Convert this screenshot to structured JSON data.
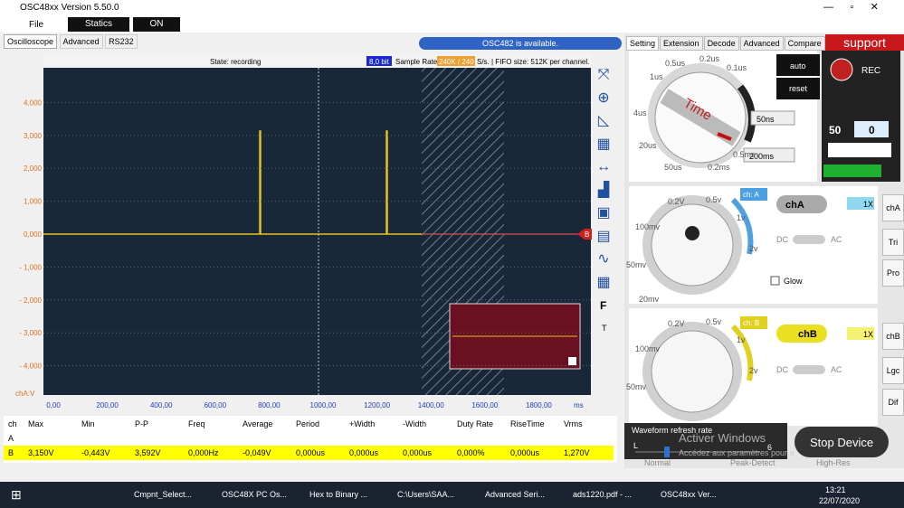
{
  "window": {
    "title": "OSC48xx  Version 5.50.0"
  },
  "menu": [
    "File",
    "Statics",
    "ON"
  ],
  "tabs": [
    "Oscilloscope",
    "Advanced",
    "RS232"
  ],
  "banner": "OSC482  is available.",
  "status": {
    "state": "State: recording",
    "bits": "8,0 bit",
    "rate_label": "Sample Rate",
    "rate": "240K / 240",
    "fifo": "S/s. | FIFO size: 512K per channel."
  },
  "plot": {
    "yticks": [
      "4,000",
      "3,000",
      "2,000",
      "1,000",
      "0,000",
      "- 1,000",
      "- 2,000",
      "- 3,000",
      "- 4,000"
    ],
    "yunit": "chA:V",
    "xticks": [
      "0,00",
      "200,00",
      "400,00",
      "600,00",
      "800,00",
      "1000,00",
      "1200,00",
      "1400,00",
      "1600,00",
      "1800,00"
    ],
    "xunit": "ms",
    "marker": "B"
  },
  "side_letters": [
    "F",
    "T"
  ],
  "measurements": {
    "headers": [
      "ch",
      "Max",
      "Min",
      "P-P",
      "Freq",
      "Average",
      "Period",
      "+Width",
      "-Width",
      "Duty Rate",
      "RiseTime",
      "Vrms"
    ],
    "rows": [
      [
        "A"
      ],
      [
        "B",
        "3,150V",
        "-0,443V",
        "3,592V",
        "0,000Hz",
        "-0,049V",
        "0,000us",
        "0,000us",
        "0,000us",
        "0,000%",
        "0,000us",
        "1,270V"
      ]
    ]
  },
  "right_tabs": [
    "Setting",
    "Extension",
    "Decode",
    "Advanced",
    "Compare"
  ],
  "support": "support",
  "time": {
    "knob": "Time",
    "labels": [
      "1us",
      "0.5us",
      "0.2us",
      "0.1us",
      "4us",
      "20us",
      "50us",
      "0.2ms",
      "0.5ms"
    ],
    "select1": "50ns",
    "select2": "200ms",
    "auto": "auto",
    "reset": "reset"
  },
  "rec": {
    "rec": "REC",
    "count": "50",
    "value": "0"
  },
  "chA": {
    "tag": "ch: A",
    "button": "chA",
    "probe": "1X",
    "dc": "DC",
    "ac": "AC",
    "glow": "Glow",
    "labels": [
      "100mv",
      "0.2V",
      "0.5v",
      "1v",
      "2v",
      "50mv",
      "20mv"
    ]
  },
  "chB": {
    "tag": "ch: B",
    "button": "chB",
    "probe": "1X",
    "dc": "DC",
    "ac": "AC",
    "labels": [
      "100mv",
      "0.2V",
      "0.5v",
      "1v",
      "2v",
      "50mv"
    ]
  },
  "side_tabs": [
    "chA",
    "Tri",
    "Pro",
    "chB",
    "Lgc",
    "Dif"
  ],
  "refresh": {
    "title": "Waveform refresh rate",
    "low": "L",
    "value": "6",
    "stop": "Stop Device",
    "watermark": "Activer Windows",
    "watermark2": "Accédez aux paramètres pour a"
  },
  "modes": [
    "Normal",
    "Peak-Detect",
    "High-Res"
  ],
  "taskbar": {
    "items": [
      "Cmpnt_Select...",
      "OSC48X PC Os...",
      "Hex to Binary ...",
      "C:\\Users\\SAA...",
      "Advanced Seri...",
      "ads1220.pdf - ...",
      "OSC48xx Ver..."
    ],
    "time": "13:21",
    "date": "22/07/2020"
  }
}
